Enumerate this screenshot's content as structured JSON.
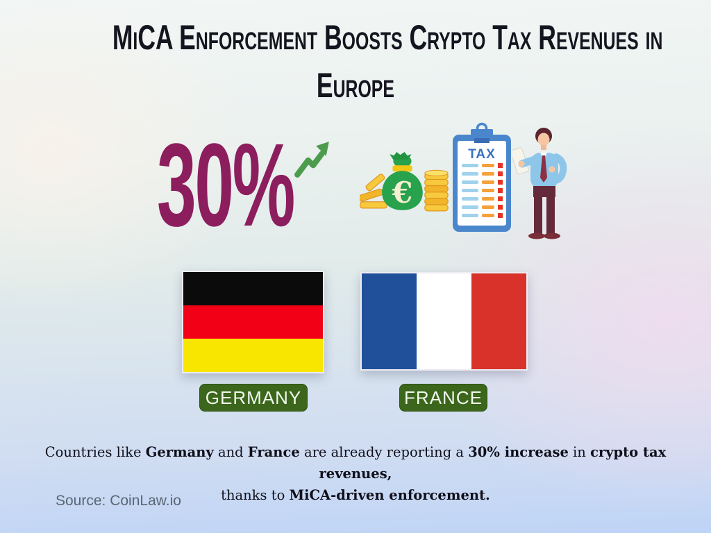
{
  "header": {
    "title_lines": [
      "MiCA Enforcement Boosts Crypto Tax Revenues in",
      "Europe"
    ]
  },
  "stat": {
    "value": "30%",
    "trend": "up"
  },
  "illustrations": {
    "tax_label": "TAX",
    "euro_symbol": "€"
  },
  "countries": [
    {
      "name": "GERMANY",
      "flag": "germany-flag"
    },
    {
      "name": "FRANCE",
      "flag": "france-flag"
    }
  ],
  "summary": {
    "segments": [
      {
        "text": "Countries like "
      },
      {
        "text": "Germany",
        "bold": true
      },
      {
        "text": " and "
      },
      {
        "text": "France",
        "bold": true
      },
      {
        "text": " are already reporting a "
      },
      {
        "text": "30% increase",
        "bold": true
      },
      {
        "text": " in "
      },
      {
        "text": "crypto tax revenues,",
        "bold": true
      },
      {
        "break": true
      },
      {
        "text": "thanks to "
      },
      {
        "text": "MiCA-driven enforcement.",
        "bold": true
      }
    ]
  },
  "source": {
    "label": "Source: CoinLaw.io"
  },
  "colors": {
    "title_text": "#15151f",
    "stat_value": "#8c1e5e",
    "trend_arrow_green": "#4d9b4d",
    "badge_green": "#3b661c",
    "germany_flag": [
      "#0b0b0b",
      "#f20015",
      "#f8e600"
    ],
    "france_flag": [
      "#20509a",
      "#ffffff",
      "#d8322a"
    ],
    "clipboard_blue": "#4a86cc",
    "tax_text_blue": "#3a72c2",
    "row_bar_light_blue": "#9fd2ec",
    "row_bar_orange": "#f5a03a",
    "row_square_red": "#e53425",
    "money_bag_green": "#28a24c",
    "coin_gold": "#f7c93c",
    "summary_text": "#10101a",
    "source_text": "#5a6572"
  }
}
